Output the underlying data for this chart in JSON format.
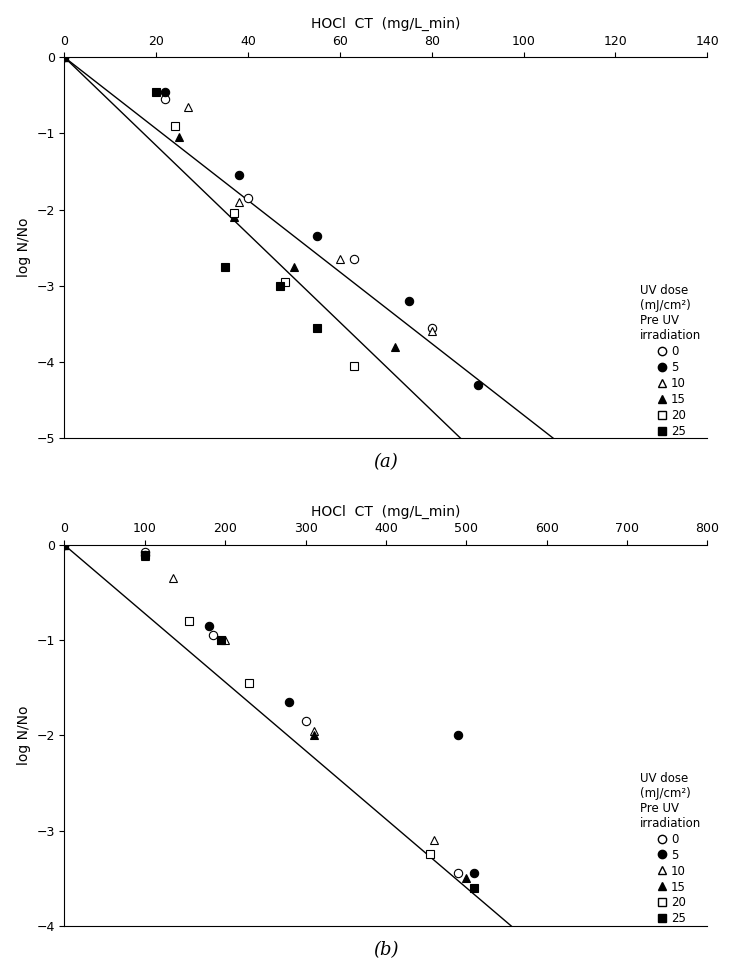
{
  "title": "HOCl  CT  (mg/L_min)",
  "ylabel": "log N/No",
  "plot_a": {
    "xlim": [
      0,
      140
    ],
    "ylim": [
      -5,
      0
    ],
    "xticks": [
      0,
      20,
      40,
      60,
      80,
      100,
      120,
      140
    ],
    "yticks": [
      0,
      -1,
      -2,
      -3,
      -4,
      -5
    ],
    "subtitle": "(a)",
    "line1_slope": -0.047,
    "line1_x_end": 108,
    "line2_slope": -0.058,
    "line2_x_end": 93,
    "series": {
      "uv0": {
        "x": [
          0,
          22,
          40,
          63,
          80
        ],
        "y": [
          0,
          -0.55,
          -1.85,
          -2.65,
          -3.55
        ]
      },
      "uv5": {
        "x": [
          0,
          22,
          38,
          55,
          75,
          90
        ],
        "y": [
          0,
          -0.45,
          -1.55,
          -2.35,
          -3.2,
          -4.3
        ]
      },
      "uv10": {
        "x": [
          0,
          27,
          38,
          60,
          80
        ],
        "y": [
          0,
          -0.65,
          -1.9,
          -2.65,
          -3.6
        ]
      },
      "uv15": {
        "x": [
          0,
          25,
          37,
          50,
          72
        ],
        "y": [
          0,
          -1.05,
          -2.1,
          -2.75,
          -3.8
        ]
      },
      "uv20": {
        "x": [
          0,
          24,
          37,
          48,
          63
        ],
        "y": [
          0,
          -0.9,
          -2.05,
          -2.95,
          -4.05
        ]
      },
      "uv25": {
        "x": [
          0,
          20,
          35,
          47,
          55
        ],
        "y": [
          0,
          -0.45,
          -2.75,
          -3.0,
          -3.55
        ]
      }
    }
  },
  "plot_b": {
    "xlim": [
      0,
      800
    ],
    "ylim": [
      -4,
      0
    ],
    "xticks": [
      0,
      100,
      200,
      300,
      400,
      500,
      600,
      700,
      800
    ],
    "yticks": [
      0,
      -1,
      -2,
      -3,
      -4
    ],
    "subtitle": "(b)",
    "line1_slope": -0.0072,
    "line1_x_end": 575,
    "series": {
      "uv0": {
        "x": [
          0,
          100,
          185,
          300,
          490
        ],
        "y": [
          0,
          -0.07,
          -0.95,
          -1.85,
          -3.45
        ]
      },
      "uv5": {
        "x": [
          0,
          100,
          180,
          280,
          490,
          510
        ],
        "y": [
          0,
          -0.1,
          -0.85,
          -1.65,
          -2.0,
          -3.45
        ]
      },
      "uv10": {
        "x": [
          0,
          135,
          200,
          310,
          460
        ],
        "y": [
          0,
          -0.35,
          -1.0,
          -1.95,
          -3.1
        ]
      },
      "uv15": {
        "x": [
          0,
          100,
          195,
          310,
          500
        ],
        "y": [
          0,
          -0.12,
          -1.0,
          -2.0,
          -3.5
        ]
      },
      "uv20": {
        "x": [
          0,
          155,
          230,
          455
        ],
        "y": [
          0,
          -0.8,
          -1.45,
          -3.25
        ]
      },
      "uv25": {
        "x": [
          0,
          100,
          195,
          510
        ],
        "y": [
          0,
          -0.1,
          -1.0,
          -3.6
        ]
      }
    }
  },
  "legend_labels": [
    "0",
    "5",
    "10",
    "15",
    "20",
    "25"
  ],
  "legend_title_line1": "UV dose",
  "legend_title_line2": "(mJ/cm²)",
  "legend_title_line3": "Pre UV",
  "legend_title_line4": "irradiation",
  "bg_color": "#ffffff",
  "marker_size": 6,
  "line_color": "#000000",
  "line_width": 1.0
}
